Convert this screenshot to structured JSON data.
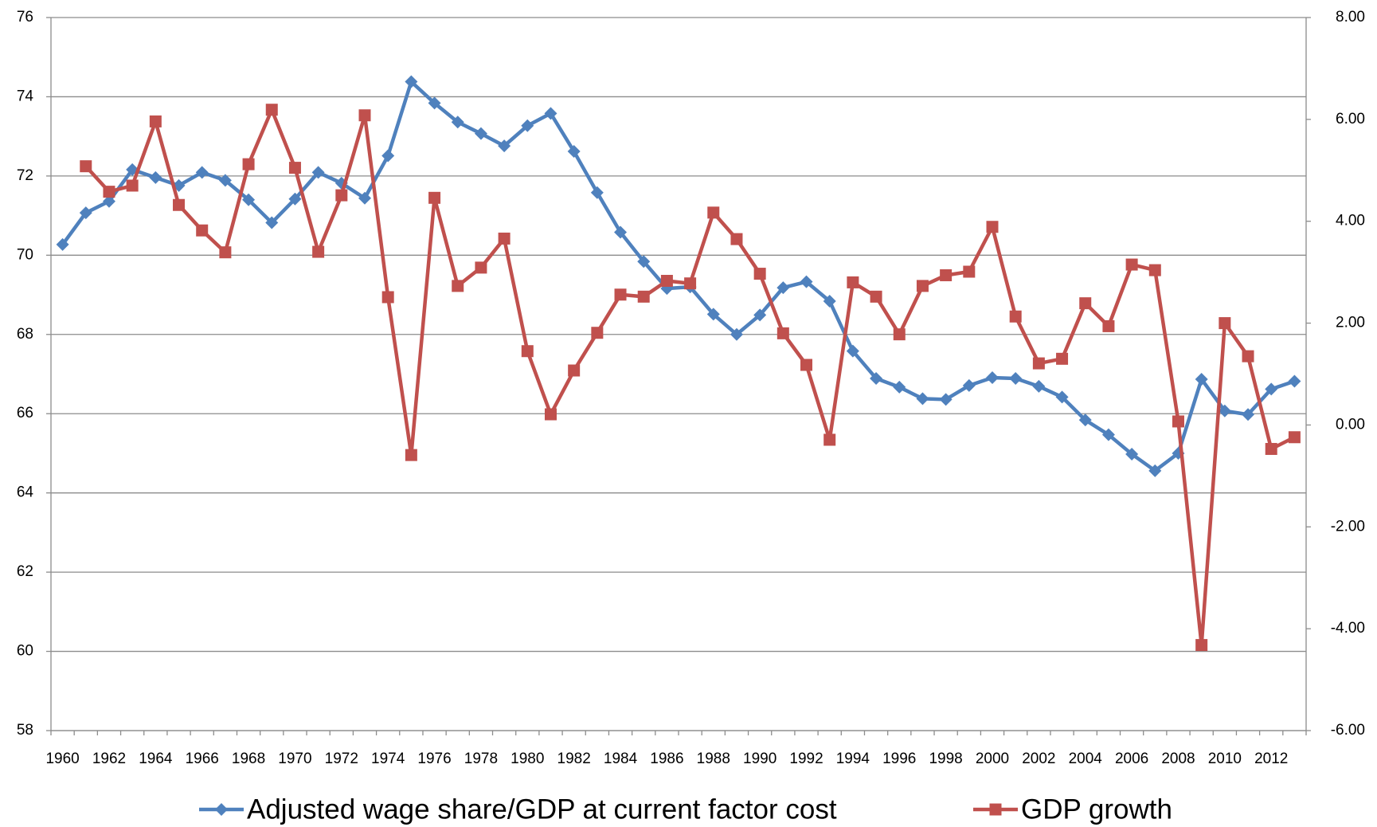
{
  "chart_data": {
    "type": "line",
    "categories": [
      "1960",
      null,
      "1962",
      null,
      "1964",
      null,
      "1966",
      null,
      "1968",
      null,
      "1970",
      null,
      "1972",
      null,
      "1974",
      null,
      "1976",
      null,
      "1978",
      null,
      "1980",
      null,
      "1982",
      null,
      "1984",
      null,
      "1986",
      null,
      "1988",
      null,
      "1990",
      null,
      "1992",
      null,
      "1994",
      null,
      "1996",
      null,
      "1998",
      null,
      "2000",
      null,
      "2002",
      null,
      "2004",
      null,
      "2006",
      null,
      "2008",
      null,
      "2010",
      null,
      "2012",
      null
    ],
    "series": [
      {
        "name": "Adjusted wage share/GDP at current factor cost",
        "color": "#4f81bd",
        "axis": "y",
        "values": [
          70.27,
          71.07,
          71.36,
          72.16,
          71.96,
          71.76,
          72.09,
          71.89,
          71.4,
          70.82,
          71.42,
          72.09,
          71.82,
          71.44,
          72.51,
          74.38,
          73.84,
          73.36,
          73.07,
          72.76,
          73.27,
          73.58,
          72.62,
          71.58,
          70.58,
          69.84,
          69.16,
          69.2,
          68.51,
          68.0,
          68.49,
          69.18,
          69.33,
          68.84,
          67.58,
          66.89,
          66.67,
          66.38,
          66.36,
          66.71,
          66.91,
          66.89,
          66.69,
          66.42,
          65.84,
          65.47,
          64.98,
          64.56,
          65.0,
          66.87,
          66.07,
          65.98,
          66.62,
          66.82
        ]
      },
      {
        "name": "GDP growth",
        "color": "#c0504d",
        "axis": "y2",
        "values": [
          null,
          5.08,
          4.58,
          4.7,
          5.96,
          4.32,
          3.82,
          3.39,
          5.12,
          6.19,
          5.05,
          3.4,
          4.51,
          6.08,
          2.51,
          -0.59,
          4.46,
          2.73,
          3.09,
          3.66,
          1.45,
          0.21,
          1.07,
          1.81,
          2.56,
          2.52,
          2.83,
          2.78,
          4.17,
          3.65,
          2.97,
          1.8,
          1.18,
          -0.29,
          2.8,
          2.52,
          1.78,
          2.73,
          2.94,
          3.01,
          3.89,
          2.13,
          1.21,
          1.3,
          2.39,
          1.94,
          3.15,
          3.04,
          0.07,
          -4.32,
          2.0,
          1.35,
          -0.47,
          -0.24
        ]
      }
    ],
    "ylim": [
      58,
      76
    ],
    "yticks": [
      58,
      60,
      62,
      64,
      66,
      68,
      70,
      72,
      74,
      76
    ],
    "y2lim": [
      -6,
      8
    ],
    "y2ticks": [
      {
        "value": -6,
        "label": "-6.00"
      },
      {
        "value": -4,
        "label": "-4.00"
      },
      {
        "value": -2,
        "label": "-2.00"
      },
      {
        "value": 0,
        "label": "0.00"
      },
      {
        "value": 2,
        "label": "2.00"
      },
      {
        "value": 4,
        "label": "4.00"
      },
      {
        "value": 6,
        "label": "6.00"
      },
      {
        "value": 8,
        "label": "8.00"
      }
    ],
    "grid": true,
    "legend": "bottom"
  }
}
